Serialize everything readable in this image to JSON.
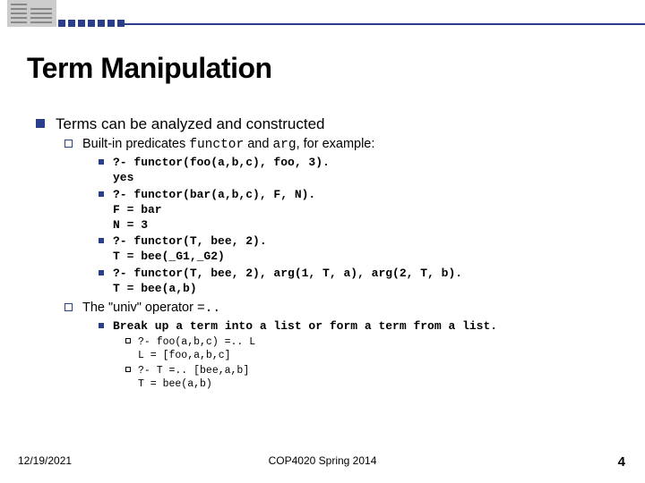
{
  "colors": {
    "accent": "#2a3e8c",
    "background": "#ffffff",
    "text": "#000000"
  },
  "title": "Term Manipulation",
  "main_bullet": "Terms can be analyzed and constructed",
  "sub1_prefix": "Built-in predicates ",
  "sub1_code1": "functor",
  "sub1_mid": " and ",
  "sub1_code2": "arg",
  "sub1_suffix": ", for example:",
  "ex1": "?- functor(foo(a,b,c), foo, 3).\nyes",
  "ex2": "?- functor(bar(a,b,c), F, N).\nF = bar\nN = 3",
  "ex3": "?- functor(T, bee, 2).\nT = bee(_G1,_G2)",
  "ex4": "?- functor(T, bee, 2), arg(1, T, a), arg(2, T, b).\nT = bee(a,b)",
  "sub2_prefix": "The \"univ\" operator ",
  "sub2_code": "=..",
  "break_up": "Break up a term into a list or form a term from a list.",
  "uex1": "?- foo(a,b,c) =.. L\nL = [foo,a,b,c]",
  "uex2": "?- T =.. [bee,a,b]\nT = bee(a,b)",
  "footer": {
    "date": "12/19/2021",
    "course": "COP4020 Spring 2014",
    "page": "4"
  }
}
